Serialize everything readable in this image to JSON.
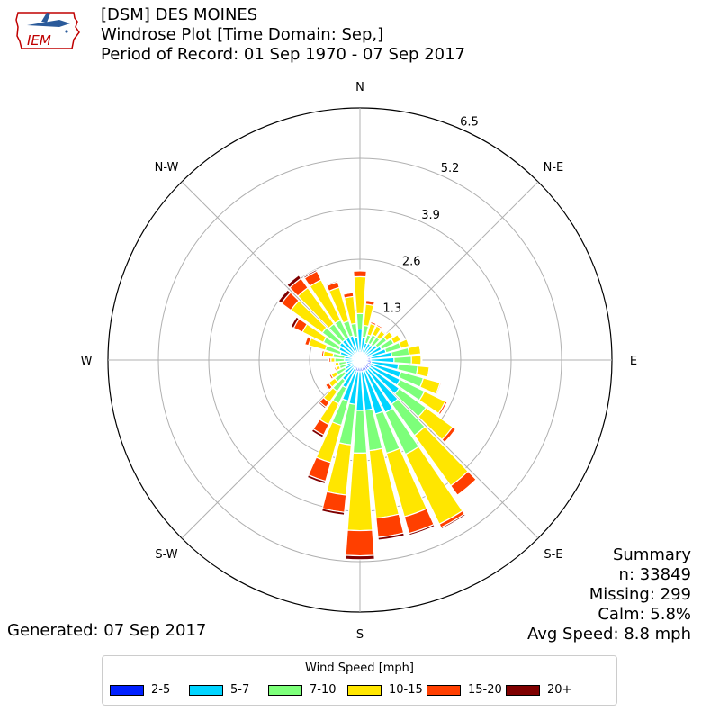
{
  "logo": {
    "text": "IEM",
    "icon": "iem-iowa-logo-icon"
  },
  "header": {
    "line1": "[DSM] DES MOINES",
    "line2": "Windrose Plot [Time Domain: Sep,]",
    "line3": "Period of Record: 01 Sep 1970 - 07 Sep 2017"
  },
  "summary": {
    "title": "Summary",
    "n": "n: 33849",
    "missing": "Missing: 299",
    "calm": "Calm: 5.8%",
    "avg_speed": "Avg Speed: 8.8 mph"
  },
  "generated": "Generated: 07 Sep 2017",
  "chart_data": {
    "type": "windrose",
    "directions": [
      "N",
      "N-E",
      "E",
      "S-E",
      "S",
      "S-W",
      "W",
      "N-W"
    ],
    "radial_ticks": [
      1.3,
      2.6,
      3.9,
      5.2,
      6.5
    ],
    "rmax": 6.5,
    "legend_title": "Wind Speed [mph]",
    "bins": [
      {
        "name": "2-5",
        "color": "#0020ff"
      },
      {
        "name": "5-7",
        "color": "#00d4ff"
      },
      {
        "name": "7-10",
        "color": "#7dff7a"
      },
      {
        "name": "10-15",
        "color": "#ffe600"
      },
      {
        "name": "15-20",
        "color": "#ff3f00"
      },
      {
        "name": "20+",
        "color": "#7f0000"
      }
    ],
    "sector_width_deg": 10,
    "series": [
      {
        "dir_deg": 0,
        "values": [
          0.25,
          0.55,
          0.4,
          0.95,
          0.15,
          0.02
        ]
      },
      {
        "dir_deg": 10,
        "values": [
          0.2,
          0.4,
          0.3,
          0.55,
          0.1,
          0.01
        ]
      },
      {
        "dir_deg": 20,
        "values": [
          0.18,
          0.28,
          0.22,
          0.3,
          0.05,
          0.01
        ]
      },
      {
        "dir_deg": 30,
        "values": [
          0.18,
          0.3,
          0.25,
          0.25,
          0.04,
          0.01
        ]
      },
      {
        "dir_deg": 40,
        "values": [
          0.18,
          0.3,
          0.25,
          0.2,
          0.03,
          0.0
        ]
      },
      {
        "dir_deg": 50,
        "values": [
          0.2,
          0.35,
          0.3,
          0.2,
          0.02,
          0.0
        ]
      },
      {
        "dir_deg": 60,
        "values": [
          0.22,
          0.4,
          0.35,
          0.2,
          0.02,
          0.0
        ]
      },
      {
        "dir_deg": 70,
        "values": [
          0.25,
          0.45,
          0.4,
          0.22,
          0.02,
          0.0
        ]
      },
      {
        "dir_deg": 80,
        "values": [
          0.28,
          0.55,
          0.45,
          0.3,
          0.02,
          0.0
        ]
      },
      {
        "dir_deg": 90,
        "values": [
          0.28,
          0.6,
          0.45,
          0.25,
          0.02,
          0.0
        ]
      },
      {
        "dir_deg": 100,
        "values": [
          0.3,
          0.7,
          0.5,
          0.3,
          0.02,
          0.0
        ]
      },
      {
        "dir_deg": 110,
        "values": [
          0.3,
          0.8,
          0.6,
          0.45,
          0.03,
          0.0
        ]
      },
      {
        "dir_deg": 120,
        "values": [
          0.3,
          0.85,
          0.7,
          0.6,
          0.05,
          0.0
        ]
      },
      {
        "dir_deg": 130,
        "values": [
          0.3,
          0.95,
          0.85,
          0.85,
          0.1,
          0.01
        ]
      },
      {
        "dir_deg": 140,
        "values": [
          0.3,
          1.1,
          1.0,
          1.6,
          0.3,
          0.02
        ]
      },
      {
        "dir_deg": 150,
        "values": [
          0.3,
          1.2,
          1.2,
          2.0,
          0.1,
          0.04
        ]
      },
      {
        "dir_deg": 160,
        "values": [
          0.3,
          1.15,
          1.05,
          1.7,
          0.45,
          0.05
        ]
      },
      {
        "dir_deg": 170,
        "values": [
          0.3,
          1.0,
          1.05,
          1.75,
          0.5,
          0.07
        ]
      },
      {
        "dir_deg": 180,
        "values": [
          0.3,
          1.0,
          1.1,
          2.0,
          0.65,
          0.1
        ]
      },
      {
        "dir_deg": 190,
        "values": [
          0.3,
          0.85,
          1.05,
          1.3,
          0.45,
          0.07
        ]
      },
      {
        "dir_deg": 200,
        "values": [
          0.3,
          0.8,
          0.65,
          1.0,
          0.5,
          0.07
        ]
      },
      {
        "dir_deg": 210,
        "values": [
          0.25,
          0.55,
          0.45,
          0.6,
          0.3,
          0.07
        ]
      },
      {
        "dir_deg": 220,
        "values": [
          0.25,
          0.4,
          0.35,
          0.35,
          0.15,
          0.04
        ]
      },
      {
        "dir_deg": 230,
        "values": [
          0.2,
          0.3,
          0.3,
          0.2,
          0.1,
          0.03
        ]
      },
      {
        "dir_deg": 240,
        "values": [
          0.18,
          0.25,
          0.25,
          0.15,
          0.05,
          0.02
        ]
      },
      {
        "dir_deg": 250,
        "values": [
          0.15,
          0.2,
          0.2,
          0.1,
          0.04,
          0.02
        ]
      },
      {
        "dir_deg": 260,
        "values": [
          0.15,
          0.2,
          0.2,
          0.1,
          0.03,
          0.01
        ]
      },
      {
        "dir_deg": 270,
        "values": [
          0.15,
          0.25,
          0.25,
          0.1,
          0.05,
          0.01
        ]
      },
      {
        "dir_deg": 280,
        "values": [
          0.15,
          0.25,
          0.3,
          0.25,
          0.05,
          0.02
        ]
      },
      {
        "dir_deg": 290,
        "values": [
          0.18,
          0.35,
          0.4,
          0.45,
          0.1,
          0.02
        ]
      },
      {
        "dir_deg": 300,
        "values": [
          0.2,
          0.4,
          0.45,
          0.6,
          0.25,
          0.08
        ]
      },
      {
        "dir_deg": 310,
        "values": [
          0.2,
          0.45,
          0.55,
          1.0,
          0.3,
          0.1
        ]
      },
      {
        "dir_deg": 320,
        "values": [
          0.2,
          0.45,
          0.5,
          1.15,
          0.3,
          0.1
        ]
      },
      {
        "dir_deg": 330,
        "values": [
          0.2,
          0.45,
          0.5,
          1.15,
          0.25,
          0.04
        ]
      },
      {
        "dir_deg": 340,
        "values": [
          0.2,
          0.45,
          0.4,
          0.9,
          0.15,
          0.03
        ]
      },
      {
        "dir_deg": 350,
        "values": [
          0.2,
          0.4,
          0.35,
          0.7,
          0.1,
          0.02
        ]
      }
    ]
  }
}
